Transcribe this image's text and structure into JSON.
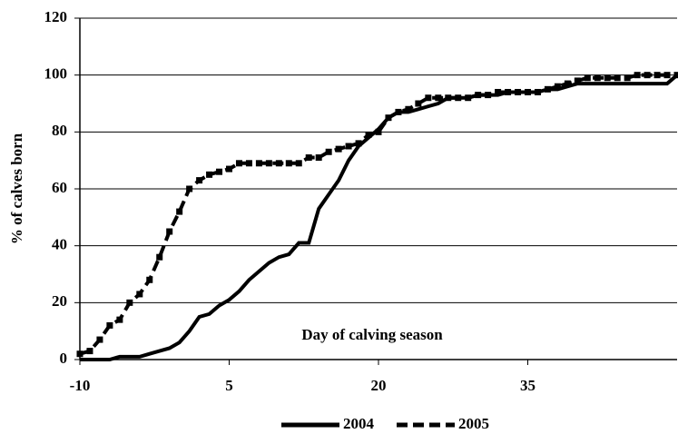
{
  "chart_data": {
    "type": "line",
    "x_label": "Day of calving season",
    "y_label": "% of calves born",
    "x": [
      -10,
      -9,
      -8,
      -7,
      -6,
      -5,
      -4,
      -3,
      -2,
      -1,
      0,
      1,
      2,
      3,
      4,
      5,
      6,
      7,
      8,
      9,
      10,
      11,
      12,
      13,
      14,
      15,
      16,
      17,
      18,
      19,
      20,
      21,
      22,
      23,
      24,
      25,
      26,
      27,
      28,
      29,
      30,
      31,
      32,
      33,
      34,
      35,
      36,
      37,
      38,
      39,
      40,
      41,
      42,
      43,
      44,
      45,
      46,
      47,
      48,
      49,
      50
    ],
    "series": [
      {
        "name": "2004",
        "color": "#000000",
        "style": "solid",
        "marker": "none",
        "values": [
          0,
          0,
          0,
          0,
          1,
          1,
          1,
          2,
          3,
          4,
          6,
          10,
          15,
          16,
          19,
          21,
          24,
          28,
          31,
          34,
          36,
          37,
          41,
          41,
          53,
          58,
          63,
          70,
          75,
          78,
          81,
          85,
          87,
          87,
          88,
          89,
          90,
          92,
          92,
          92,
          93,
          93,
          93,
          94,
          94,
          94,
          94,
          95,
          95,
          96,
          97,
          97,
          97,
          97,
          97,
          97,
          97,
          97,
          97,
          97,
          100
        ]
      },
      {
        "name": "2005",
        "color": "#000000",
        "style": "dashed",
        "marker": "square",
        "values": [
          2,
          3,
          7,
          12,
          14,
          20,
          23,
          28,
          36,
          45,
          52,
          60,
          63,
          65,
          66,
          67,
          69,
          69,
          69,
          69,
          69,
          69,
          69,
          71,
          71,
          73,
          74,
          75,
          76,
          79,
          80,
          85,
          87,
          88,
          90,
          92,
          92,
          92,
          92,
          92,
          93,
          93,
          94,
          94,
          94,
          94,
          94,
          95,
          96,
          97,
          98,
          99,
          99,
          99,
          99,
          99,
          100,
          100,
          100,
          100,
          100
        ]
      }
    ],
    "xlim": [
      -10,
      50
    ],
    "xticks": [
      -10,
      5,
      20,
      35
    ],
    "ylim": [
      0,
      120
    ],
    "yticks": [
      0,
      20,
      40,
      60,
      80,
      100,
      120
    ],
    "grid": true,
    "legend": "bottom"
  }
}
